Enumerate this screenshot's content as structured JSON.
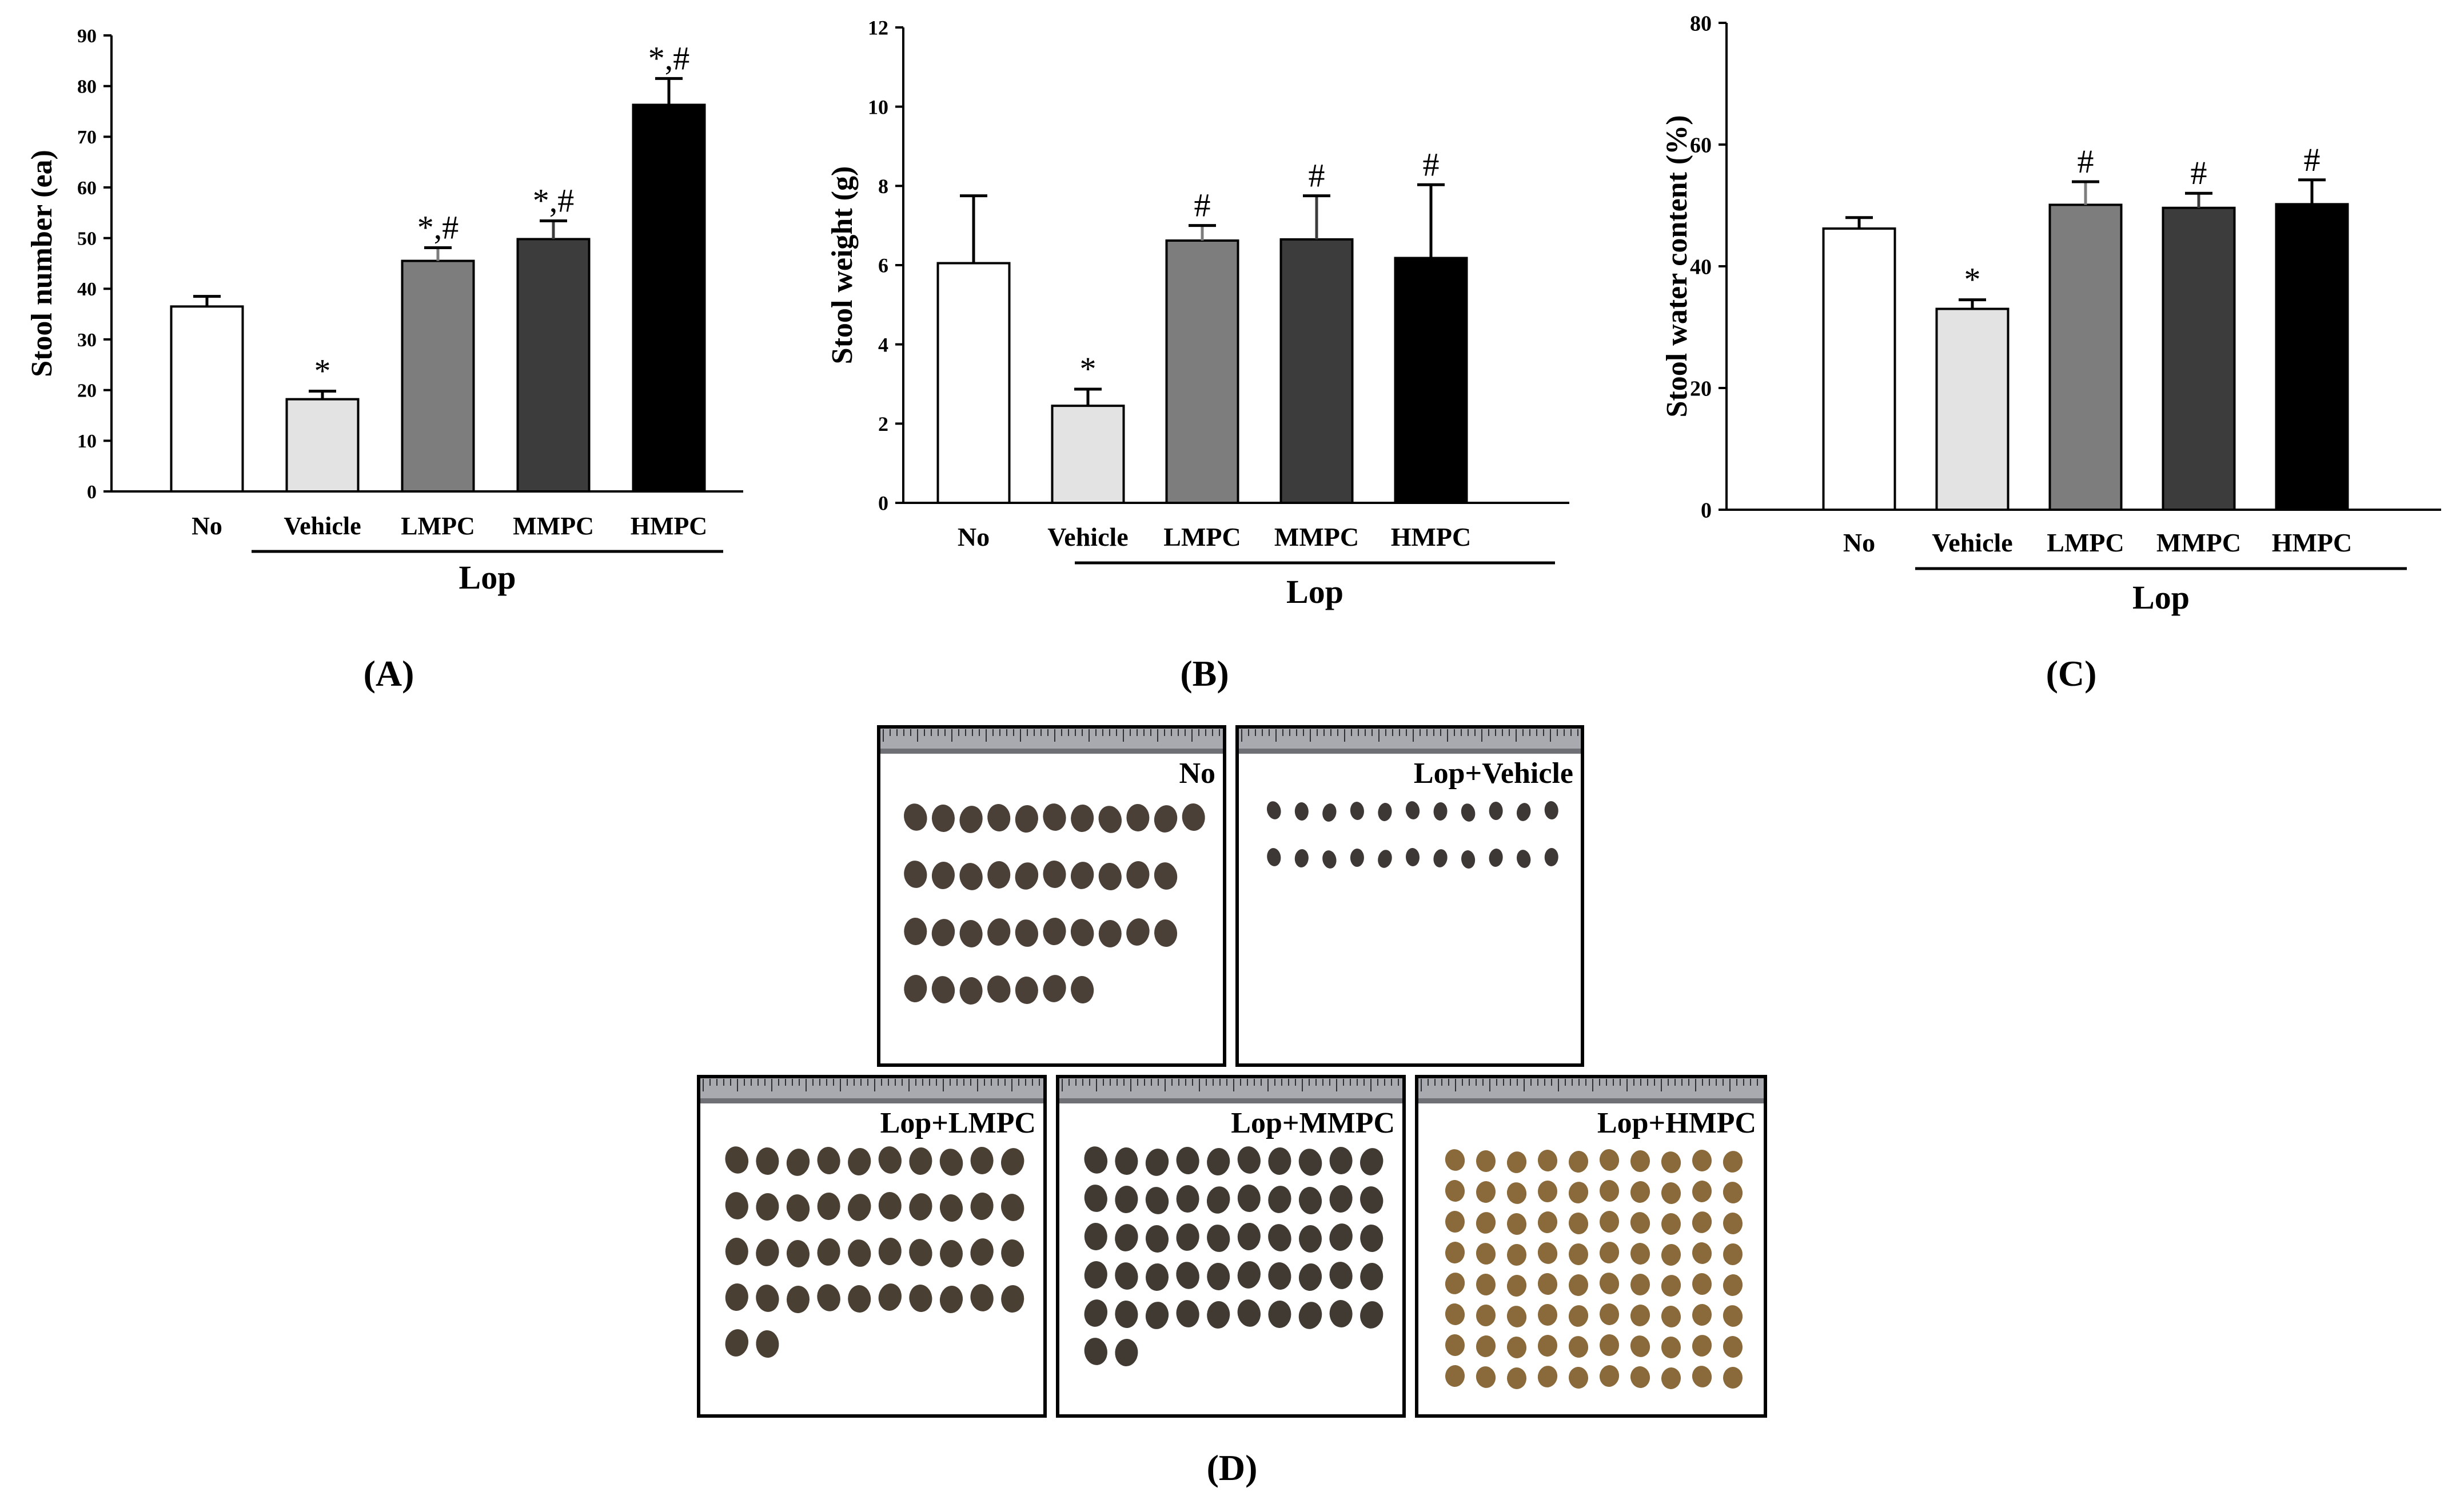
{
  "chart_data": [
    {
      "panel": "(A)",
      "type": "bar",
      "ylabel": "Stool number (ea)",
      "ylim": [
        0,
        90
      ],
      "yticks": [
        0,
        10,
        20,
        30,
        40,
        50,
        60,
        70,
        80,
        90
      ],
      "categories": [
        "No",
        "Vehicle",
        "LMPC",
        "MMPC",
        "HMPC"
      ],
      "group_label": "Lop",
      "values": [
        36.5,
        18.2,
        45.5,
        49.8,
        76.3
      ],
      "errors": [
        2.0,
        1.6,
        2.6,
        3.6,
        5.2
      ],
      "annotations": [
        "",
        "*",
        "*,#",
        "*,#",
        "*,#"
      ],
      "colors": [
        "#ffffff",
        "#e3e3e3",
        "#7d7d7d",
        "#3c3c3c",
        "#000000"
      ]
    },
    {
      "panel": "(B)",
      "type": "bar",
      "ylabel": "Stool weight (g)",
      "ylim": [
        0,
        12
      ],
      "yticks": [
        0,
        2,
        4,
        6,
        8,
        10,
        12
      ],
      "categories": [
        "No",
        "Vehicle",
        "LMPC",
        "MMPC",
        "HMPC"
      ],
      "group_label": "Lop",
      "values": [
        6.05,
        2.45,
        6.62,
        6.65,
        6.18
      ],
      "errors": [
        1.7,
        0.42,
        0.38,
        1.1,
        1.85
      ],
      "annotations": [
        "",
        "*",
        "#",
        "#",
        "#"
      ],
      "colors": [
        "#ffffff",
        "#e3e3e3",
        "#7d7d7d",
        "#3c3c3c",
        "#000000"
      ]
    },
    {
      "panel": "(C)",
      "type": "bar",
      "ylabel": "Stool water content (%)",
      "ylim": [
        0,
        80
      ],
      "yticks": [
        0,
        20,
        40,
        60,
        80
      ],
      "categories": [
        "No",
        "Vehicle",
        "LMPC",
        "MMPC",
        "HMPC"
      ],
      "group_label": "Lop",
      "values": [
        46.2,
        33.0,
        50.1,
        49.6,
        50.2
      ],
      "errors": [
        1.8,
        1.5,
        3.8,
        2.4,
        4.0
      ],
      "annotations": [
        "",
        "*",
        "#",
        "#",
        "#"
      ],
      "colors": [
        "#ffffff",
        "#e3e3e3",
        "#7d7d7d",
        "#3c3c3c",
        "#000000"
      ]
    }
  ],
  "photos": {
    "panel": "(D)",
    "items": [
      {
        "label": "No",
        "row_counts": [
          11,
          10,
          10,
          7
        ],
        "pellet_color": "#4a4038"
      },
      {
        "label": "Lop+Vehicle",
        "row_counts": [
          11,
          11
        ],
        "pellet_color": "#3d3835"
      },
      {
        "label": "Lop+LMPC",
        "row_counts": [
          10,
          10,
          10,
          10,
          2
        ],
        "pellet_color": "#4a3f33"
      },
      {
        "label": "Lop+MMPC",
        "row_counts": [
          10,
          10,
          10,
          10,
          10,
          2
        ],
        "pellet_color": "#403a33"
      },
      {
        "label": "Lop+HMPC",
        "row_counts": [
          10,
          10,
          10,
          10,
          10,
          10,
          10,
          10
        ],
        "pellet_color": "#8a6a3a"
      }
    ]
  }
}
